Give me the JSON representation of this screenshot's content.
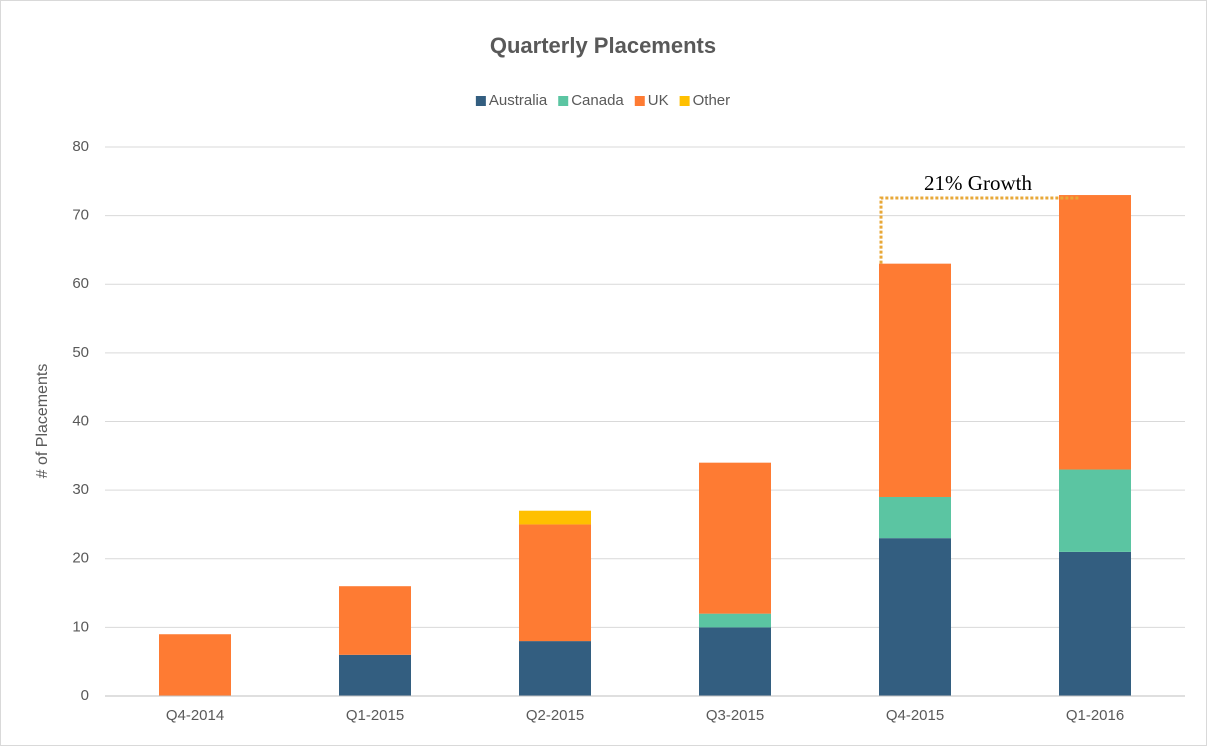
{
  "chart_data": {
    "type": "stacked_bar",
    "title": "Quarterly Placements",
    "categories": [
      "Q4-2014",
      "Q1-2015",
      "Q2-2015",
      "Q3-2015",
      "Q4-2015",
      "Q1-2016"
    ],
    "series": [
      {
        "name": "Australia",
        "color": "#335e80",
        "values": [
          0,
          6,
          8,
          10,
          23,
          21
        ]
      },
      {
        "name": "Canada",
        "color": "#5bc5a2",
        "values": [
          0,
          0,
          0,
          2,
          6,
          12
        ]
      },
      {
        "name": "UK",
        "color": "#fe7b33",
        "values": [
          9,
          10,
          17,
          22,
          34,
          40
        ]
      },
      {
        "name": "Other",
        "color": "#ffc000",
        "values": [
          0,
          0,
          2,
          0,
          0,
          0
        ]
      }
    ],
    "y_label": "# of Placements",
    "ylim": [
      0,
      80
    ],
    "yticks": [
      0,
      10,
      20,
      30,
      40,
      50,
      60,
      70,
      80
    ],
    "grid": true,
    "legend": "top",
    "annotation": "21% Growth"
  }
}
